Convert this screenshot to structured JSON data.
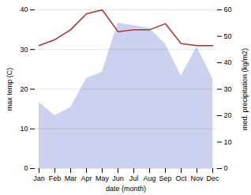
{
  "chart_data": {
    "type": "line",
    "categories": [
      "Jan",
      "Feb",
      "Mar",
      "Apr",
      "May",
      "Jun",
      "Jul",
      "Aug",
      "Sep",
      "Oct",
      "Nov",
      "Dec"
    ],
    "series": [
      {
        "type": "area",
        "axis": "y2",
        "color": "#b0b8e8",
        "values": [
          25.0,
          20.0,
          23.0,
          34.0,
          36.5,
          55.0,
          54.0,
          53.0,
          47.0,
          35.0,
          46.0,
          34.0
        ]
      },
      {
        "type": "line",
        "color": "#b03030",
        "values": [
          31.0,
          32.5,
          35.0,
          39.0,
          40.0,
          34.5,
          35.0,
          35.0,
          36.5,
          31.5,
          31.0,
          31.0
        ]
      }
    ],
    "xlabel": "date (month)",
    "ylabel": "max temp (C)",
    "y2label": "med. precipitation (kg/m2)",
    "ylim": [
      0,
      40
    ],
    "yticks": [
      0,
      10,
      20,
      30,
      40
    ],
    "y2lim": [
      0,
      60
    ],
    "y2ticks": [
      0,
      10,
      20,
      30,
      40,
      50,
      60
    ],
    "grid": true
  }
}
